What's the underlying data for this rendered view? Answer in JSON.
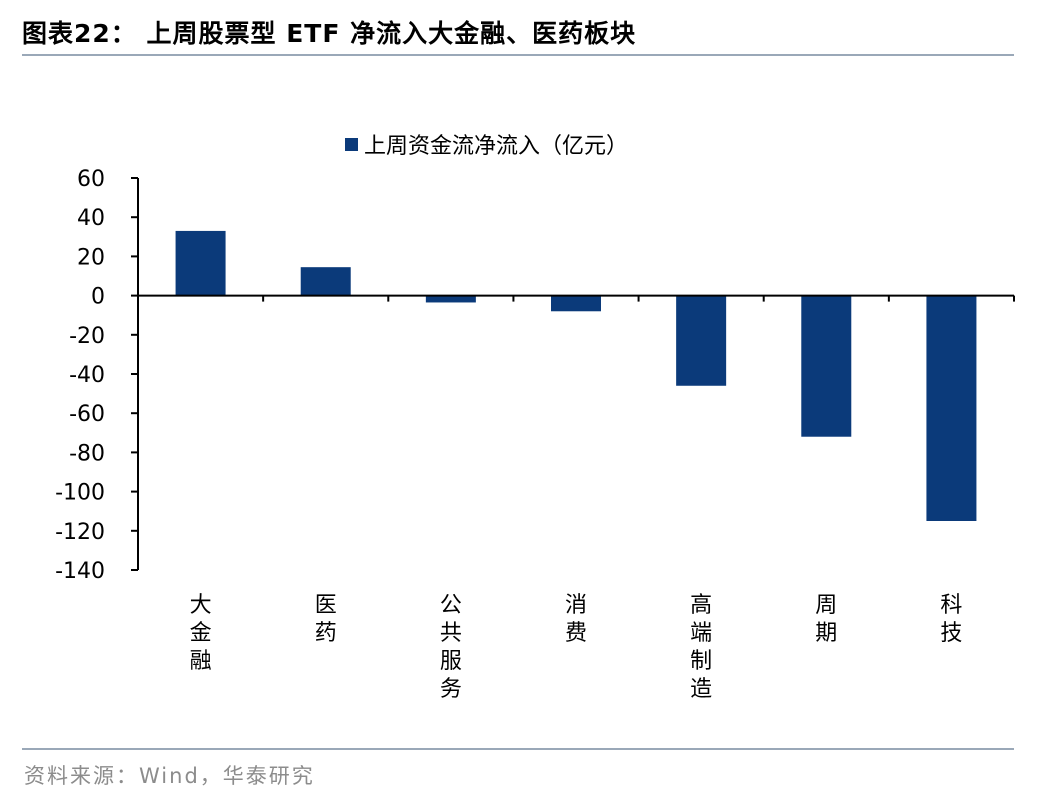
{
  "figure": {
    "title": "图表22：  上周股票型 ETF 净流入大金融、医药板块",
    "source": "资料来源：Wind，华泰研究"
  },
  "colors": {
    "bar": "#0b3a7a",
    "rule": "#9aa8b8",
    "source_text": "#8c8c8c"
  },
  "chart_data": {
    "type": "bar",
    "categories": [
      "大金融",
      "医药",
      "公共服务",
      "消费",
      "高端制造",
      "周期",
      "科技"
    ],
    "series": [
      {
        "name": "上周资金流净流入（亿元）",
        "values": [
          33,
          14.5,
          -3.5,
          -8,
          -46,
          -72,
          -115
        ]
      }
    ],
    "ylim": [
      -140,
      60
    ],
    "yticks": [
      "60",
      "40",
      "20",
      "0",
      "-20",
      "-40",
      "-60",
      "-80",
      "-100",
      "-120",
      "-140"
    ],
    "legend_position": "top-center",
    "grid": false
  }
}
